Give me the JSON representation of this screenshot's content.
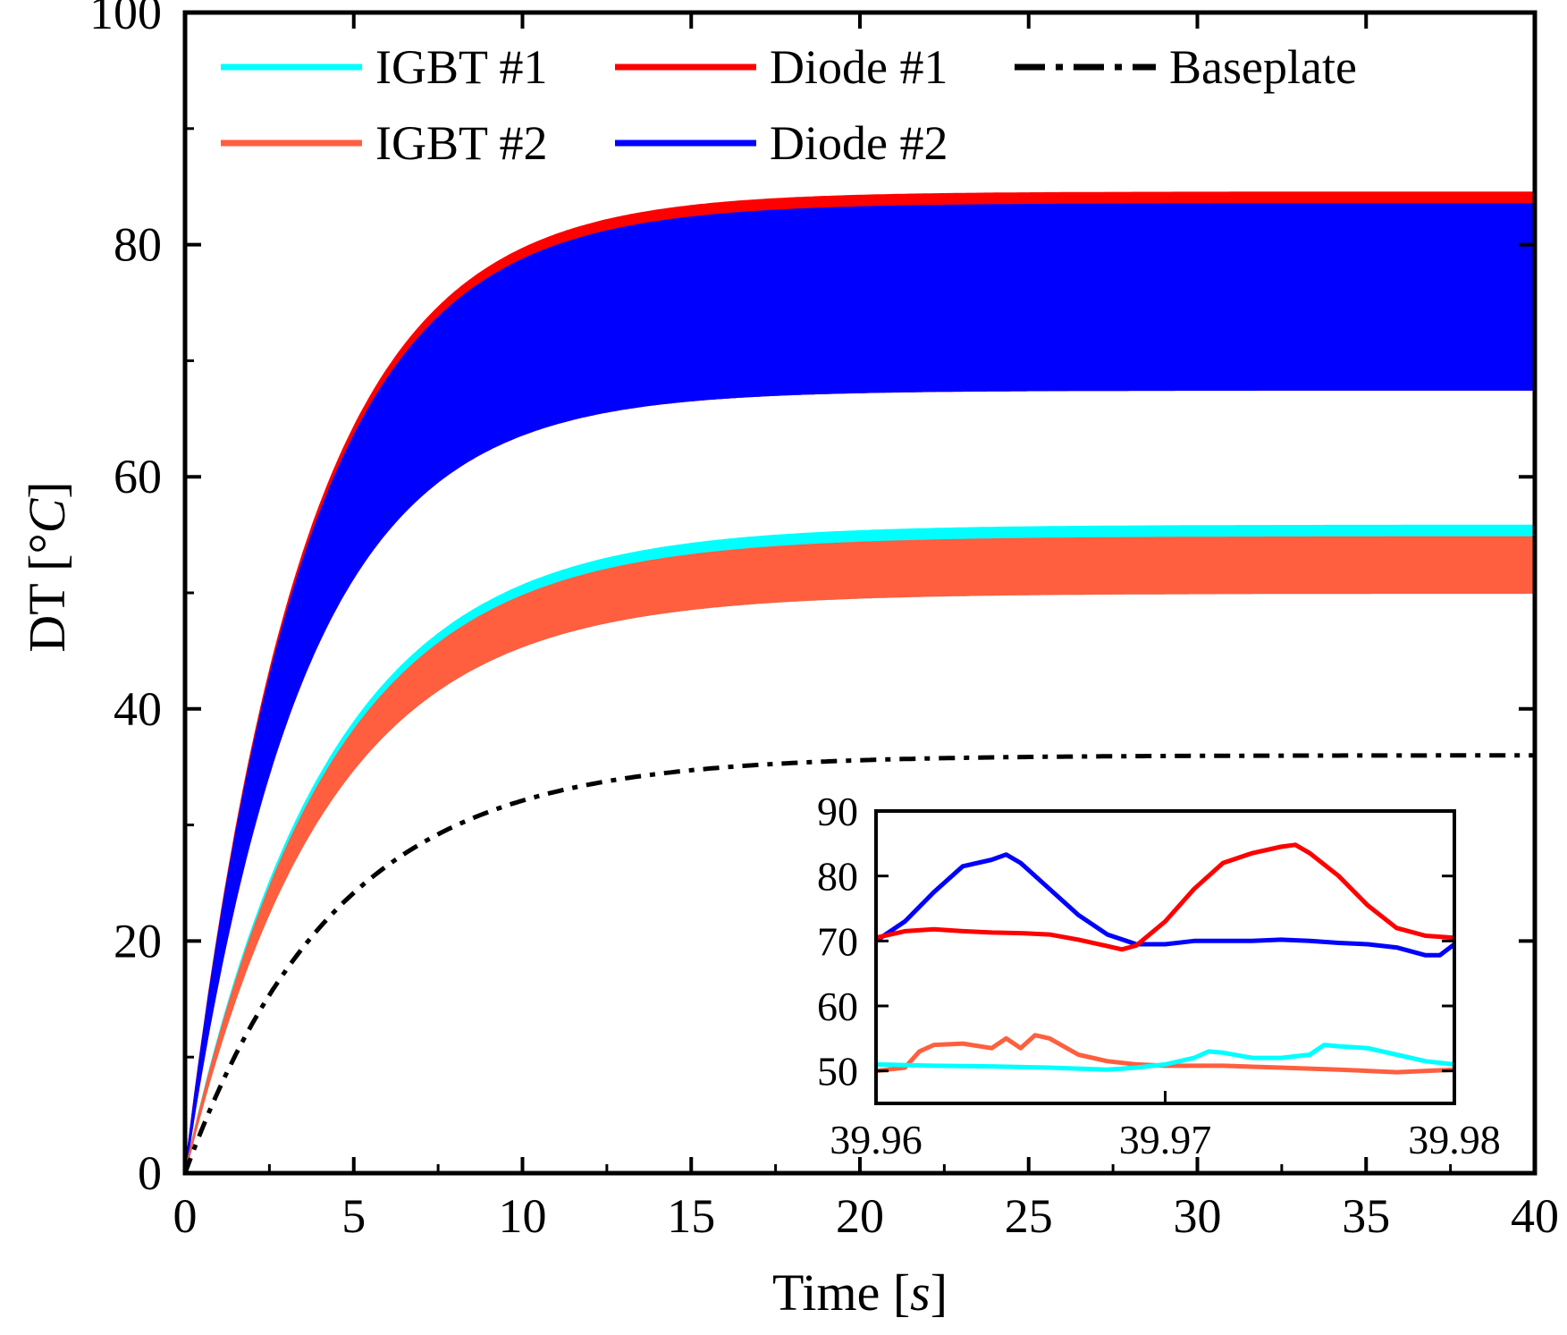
{
  "chart_data": [
    {
      "id": "main",
      "type": "line",
      "xlabel_prefix": "Time [",
      "xlabel_unit": "s",
      "xlabel_suffix": "]",
      "ylabel_prefix": "DT [°",
      "ylabel_unit": "C",
      "ylabel_suffix": "]",
      "xlim": [
        0,
        40
      ],
      "ylim": [
        0,
        100
      ],
      "xticks": [
        0,
        5,
        10,
        15,
        20,
        25,
        30,
        35,
        40
      ],
      "yticks": [
        0,
        20,
        40,
        60,
        80,
        100
      ],
      "legend": [
        {
          "name": "IGBT #1",
          "color": "#00ffff",
          "style": "solid"
        },
        {
          "name": "Diode #1",
          "color": "#ff0000",
          "style": "solid"
        },
        {
          "name": "Baseplate",
          "color": "#000000",
          "style": "dashdot"
        },
        {
          "name": "IGBT #2",
          "color": "#ff5f3f",
          "style": "solid"
        },
        {
          "name": "Diode #2",
          "color": "#0000ff",
          "style": "solid"
        }
      ],
      "series": [
        {
          "name": "Diode #1",
          "color": "#ff0000",
          "band": true,
          "upper_steady": 84.5,
          "lower_steady": 67.5,
          "tau": 3.5
        },
        {
          "name": "Diode #2",
          "color": "#0000ff",
          "band": true,
          "upper_steady": 83.5,
          "lower_steady": 67.5,
          "tau": 3.5
        },
        {
          "name": "IGBT #1",
          "color": "#00ffff",
          "band": true,
          "upper_steady": 55.8,
          "lower_steady": 50.0,
          "tau": 4.2
        },
        {
          "name": "IGBT #2",
          "color": "#ff5f3f",
          "band": true,
          "upper_steady": 54.8,
          "lower_steady": 50.0,
          "tau": 4.2
        },
        {
          "name": "Baseplate",
          "color": "#000000",
          "band": false,
          "steady": 36.0,
          "tau": 4.5,
          "style": "dashdot"
        }
      ]
    },
    {
      "id": "inset",
      "type": "line",
      "xlim": [
        39.96,
        39.98
      ],
      "ylim": [
        45,
        90
      ],
      "xticks": [
        39.96,
        39.97,
        39.98
      ],
      "yticks": [
        50,
        60,
        70,
        80,
        90
      ],
      "series": [
        {
          "name": "Diode #2",
          "color": "#0000ff",
          "x": [
            39.96,
            39.961,
            39.962,
            39.963,
            39.964,
            39.9645,
            39.965,
            39.966,
            39.967,
            39.968,
            39.969,
            39.97,
            39.971,
            39.972,
            39.973,
            39.974,
            39.975,
            39.976,
            39.977,
            39.978,
            39.979,
            39.9795,
            39.98
          ],
          "y": [
            70,
            73,
            77.5,
            81.5,
            82.5,
            83.3,
            82,
            78,
            74,
            71,
            69.5,
            69.5,
            70,
            70,
            70,
            70.2,
            70,
            69.7,
            69.5,
            69,
            67.8,
            67.8,
            69.5
          ]
        },
        {
          "name": "Diode #1",
          "color": "#ff0000",
          "x": [
            39.96,
            39.961,
            39.962,
            39.963,
            39.964,
            39.965,
            39.966,
            39.967,
            39.968,
            39.9685,
            39.969,
            39.97,
            39.971,
            39.972,
            39.973,
            39.974,
            39.9745,
            39.975,
            39.976,
            39.977,
            39.978,
            39.979,
            39.98
          ],
          "y": [
            70.5,
            71.5,
            71.8,
            71.5,
            71.3,
            71.2,
            71,
            70.2,
            69.2,
            68.7,
            69.3,
            73,
            78,
            82,
            83.5,
            84.5,
            84.8,
            83.5,
            80,
            75.5,
            72,
            70.8,
            70.5
          ]
        },
        {
          "name": "IGBT #2",
          "color": "#ff5f3f",
          "x": [
            39.96,
            39.961,
            39.9615,
            39.962,
            39.963,
            39.964,
            39.9645,
            39.965,
            39.9655,
            39.966,
            39.967,
            39.968,
            39.969,
            39.97,
            39.972,
            39.974,
            39.976,
            39.978,
            39.98
          ],
          "y": [
            50,
            50.5,
            53,
            54,
            54.2,
            53.5,
            55,
            53.5,
            55.5,
            55,
            52.5,
            51.5,
            51,
            50.8,
            50.8,
            50.5,
            50.2,
            49.8,
            50.2
          ]
        },
        {
          "name": "IGBT #1",
          "color": "#00ffff",
          "x": [
            39.96,
            39.962,
            39.964,
            39.966,
            39.968,
            39.969,
            39.97,
            39.971,
            39.9715,
            39.972,
            39.973,
            39.974,
            39.975,
            39.9755,
            39.976,
            39.977,
            39.978,
            39.979,
            39.98
          ],
          "y": [
            51,
            50.8,
            50.7,
            50.5,
            50.2,
            50.5,
            51,
            52,
            53,
            52.8,
            52,
            52,
            52.5,
            54,
            53.8,
            53.5,
            52.5,
            51.5,
            51
          ]
        }
      ]
    }
  ]
}
